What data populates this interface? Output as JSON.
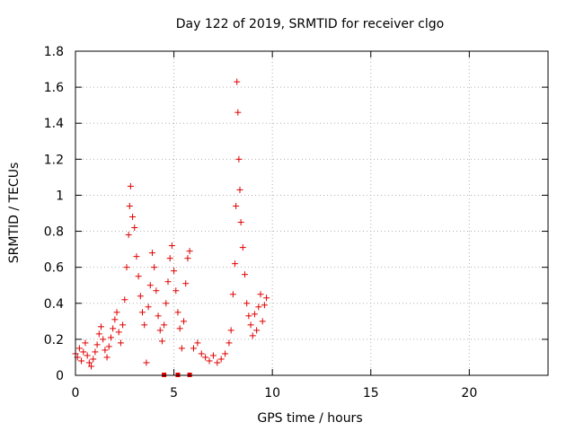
{
  "chart_data": {
    "type": "scatter",
    "title": "Day 122 of 2019, SRMTID for receiver clgo",
    "xlabel": "GPS time / hours",
    "ylabel": "SRMTID / TECUs",
    "xlim": [
      0,
      24
    ],
    "ylim": [
      0,
      1.8
    ],
    "xticks": [
      0,
      5,
      10,
      15,
      20
    ],
    "xtick_labels": [
      "0",
      "5",
      "10",
      "15",
      "20"
    ],
    "yticks": [
      0,
      0.2,
      0.4,
      0.6,
      0.8,
      1,
      1.2,
      1.4,
      1.6,
      1.8
    ],
    "ytick_labels": [
      "0",
      "0.2",
      "0.4",
      "0.6",
      "0.8",
      "1",
      "1.2",
      "1.4",
      "1.6",
      "1.8"
    ],
    "grid": true,
    "marker": "+",
    "color": "#e00000",
    "series": [
      {
        "name": "SRMTID",
        "points": [
          [
            0.0,
            0.12
          ],
          [
            0.1,
            0.1
          ],
          [
            0.2,
            0.15
          ],
          [
            0.3,
            0.08
          ],
          [
            0.4,
            0.13
          ],
          [
            0.5,
            0.18
          ],
          [
            0.6,
            0.11
          ],
          [
            0.7,
            0.07
          ],
          [
            0.8,
            0.05
          ],
          [
            0.9,
            0.09
          ],
          [
            1.0,
            0.13
          ],
          [
            1.1,
            0.17
          ],
          [
            1.2,
            0.23
          ],
          [
            1.3,
            0.27
          ],
          [
            1.4,
            0.2
          ],
          [
            1.5,
            0.14
          ],
          [
            1.6,
            0.1
          ],
          [
            1.7,
            0.16
          ],
          [
            1.8,
            0.21
          ],
          [
            1.9,
            0.26
          ],
          [
            2.0,
            0.31
          ],
          [
            2.1,
            0.35
          ],
          [
            2.2,
            0.24
          ],
          [
            2.3,
            0.18
          ],
          [
            2.4,
            0.28
          ],
          [
            2.5,
            0.42
          ],
          [
            2.6,
            0.6
          ],
          [
            2.7,
            0.78
          ],
          [
            2.75,
            0.94
          ],
          [
            2.8,
            1.05
          ],
          [
            2.9,
            0.88
          ],
          [
            3.0,
            0.82
          ],
          [
            3.1,
            0.66
          ],
          [
            3.2,
            0.55
          ],
          [
            3.3,
            0.44
          ],
          [
            3.4,
            0.35
          ],
          [
            3.5,
            0.28
          ],
          [
            3.6,
            0.07
          ],
          [
            3.7,
            0.38
          ],
          [
            3.8,
            0.5
          ],
          [
            3.9,
            0.68
          ],
          [
            4.0,
            0.6
          ],
          [
            4.1,
            0.47
          ],
          [
            4.2,
            0.33
          ],
          [
            4.3,
            0.25
          ],
          [
            4.4,
            0.19
          ],
          [
            4.5,
            0.28
          ],
          [
            4.6,
            0.4
          ],
          [
            4.7,
            0.52
          ],
          [
            4.8,
            0.65
          ],
          [
            4.9,
            0.72
          ],
          [
            5.0,
            0.58
          ],
          [
            5.1,
            0.47
          ],
          [
            5.2,
            0.35
          ],
          [
            5.3,
            0.26
          ],
          [
            5.4,
            0.15
          ],
          [
            5.5,
            0.3
          ],
          [
            5.6,
            0.51
          ],
          [
            5.7,
            0.65
          ],
          [
            5.8,
            0.69
          ],
          [
            6.0,
            0.15
          ],
          [
            6.2,
            0.18
          ],
          [
            6.4,
            0.12
          ],
          [
            6.6,
            0.1
          ],
          [
            6.8,
            0.08
          ],
          [
            7.0,
            0.11
          ],
          [
            7.2,
            0.07
          ],
          [
            7.4,
            0.09
          ],
          [
            7.6,
            0.12
          ],
          [
            7.8,
            0.18
          ],
          [
            7.9,
            0.25
          ],
          [
            8.0,
            0.45
          ],
          [
            8.1,
            0.62
          ],
          [
            8.15,
            0.94
          ],
          [
            8.2,
            1.63
          ],
          [
            8.25,
            1.46
          ],
          [
            8.3,
            1.2
          ],
          [
            8.35,
            1.03
          ],
          [
            8.4,
            0.85
          ],
          [
            8.5,
            0.71
          ],
          [
            8.6,
            0.56
          ],
          [
            8.7,
            0.4
          ],
          [
            8.8,
            0.33
          ],
          [
            8.9,
            0.28
          ],
          [
            9.0,
            0.22
          ],
          [
            9.1,
            0.34
          ],
          [
            9.2,
            0.25
          ],
          [
            9.3,
            0.38
          ],
          [
            9.4,
            0.45
          ],
          [
            9.5,
            0.3
          ],
          [
            9.6,
            0.39
          ],
          [
            9.7,
            0.43
          ]
        ]
      }
    ],
    "gap_markers": {
      "y": 0,
      "x": [
        4.5,
        5.2,
        5.8
      ]
    }
  }
}
